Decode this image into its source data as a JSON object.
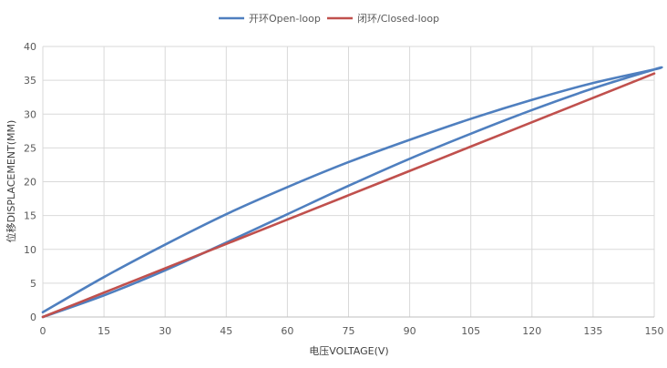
{
  "chart_data": {
    "type": "line",
    "title": "",
    "xlabel": "电压VOLTAGE(V)",
    "ylabel": "位移DISPLACEMENT(MM)",
    "xlim": [
      0,
      150
    ],
    "ylim": [
      0,
      40
    ],
    "x_ticks": [
      0,
      15,
      30,
      45,
      60,
      75,
      90,
      105,
      120,
      135,
      150
    ],
    "y_ticks": [
      0,
      5,
      10,
      15,
      20,
      25,
      30,
      35,
      40
    ],
    "grid": true,
    "legend_position": "top-center",
    "series": [
      {
        "name": "开环Open-loop",
        "color": "#4f7fbf",
        "x": [
          0,
          15,
          30,
          45,
          60,
          75,
          90,
          105,
          120,
          135,
          150,
          150,
          135,
          120,
          105,
          90,
          75,
          60,
          45,
          30,
          15,
          0
        ],
        "y": [
          0,
          3.2,
          6.9,
          11.0,
          15.2,
          19.4,
          23.4,
          27.1,
          30.6,
          33.8,
          36.6,
          36.6,
          34.6,
          32.1,
          29.3,
          26.2,
          22.9,
          19.2,
          15.2,
          10.7,
          5.9,
          0.7
        ]
      },
      {
        "name": "闭环/Closed-loop",
        "color": "#c0504d",
        "x": [
          0,
          15,
          30,
          45,
          60,
          75,
          90,
          105,
          120,
          135,
          150
        ],
        "y": [
          0,
          3.6,
          7.2,
          10.8,
          14.4,
          18.0,
          21.6,
          25.2,
          28.8,
          32.4,
          36.0
        ]
      }
    ]
  }
}
